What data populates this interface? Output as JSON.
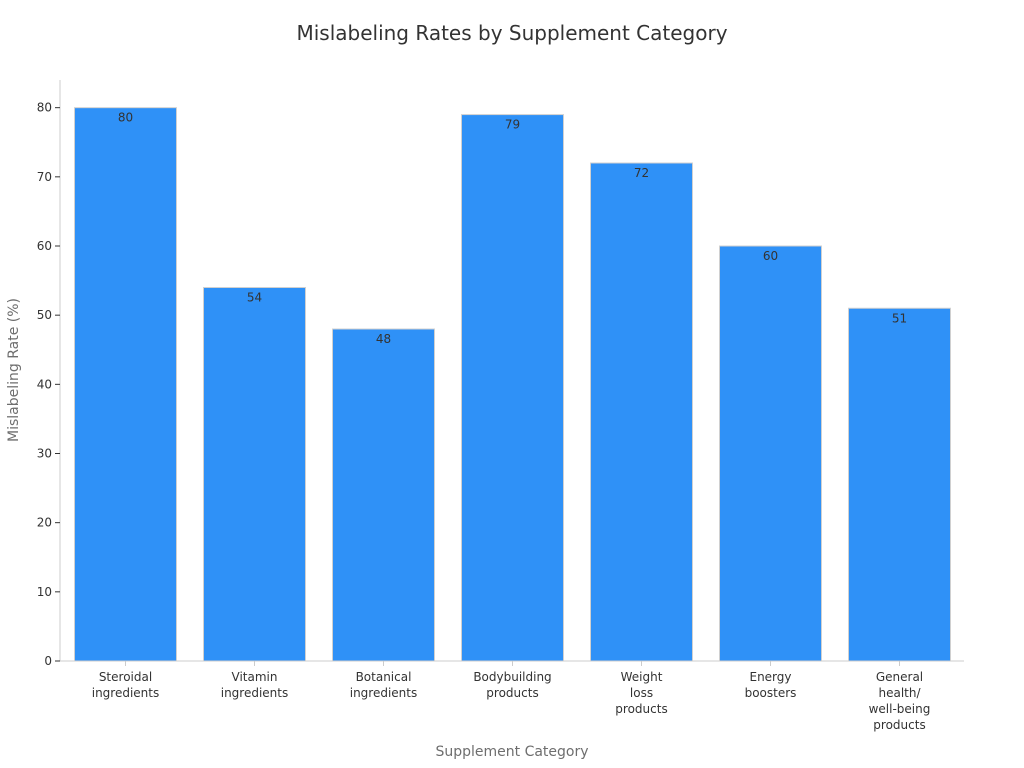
{
  "chart_data": {
    "type": "bar",
    "title": "Mislabeling Rates by Supplement Category",
    "xlabel": "Supplement Category",
    "ylabel": "Mislabeling Rate (%)",
    "ylim": [
      0,
      84
    ],
    "yticks": [
      0,
      10,
      20,
      30,
      40,
      50,
      60,
      70,
      80
    ],
    "grid": false,
    "categories": [
      "Steroidal ingredients",
      "Vitamin ingredients",
      "Botanical ingredients",
      "Bodybuilding products",
      "Weight loss products",
      "Energy boosters",
      "General health/ well-being products"
    ],
    "category_lines": [
      [
        "Steroidal",
        "ingredients"
      ],
      [
        "Vitamin",
        "ingredients"
      ],
      [
        "Botanical",
        "ingredients"
      ],
      [
        "Bodybuilding",
        "products"
      ],
      [
        "Weight",
        "loss",
        "products"
      ],
      [
        "Energy",
        "boosters"
      ],
      [
        "General",
        "health/",
        "well-being",
        "products"
      ]
    ],
    "values": [
      80,
      54,
      48,
      79,
      72,
      60,
      51
    ],
    "bar_color": "#2f91f7",
    "bar_edge_color": "#d0d0d0"
  }
}
